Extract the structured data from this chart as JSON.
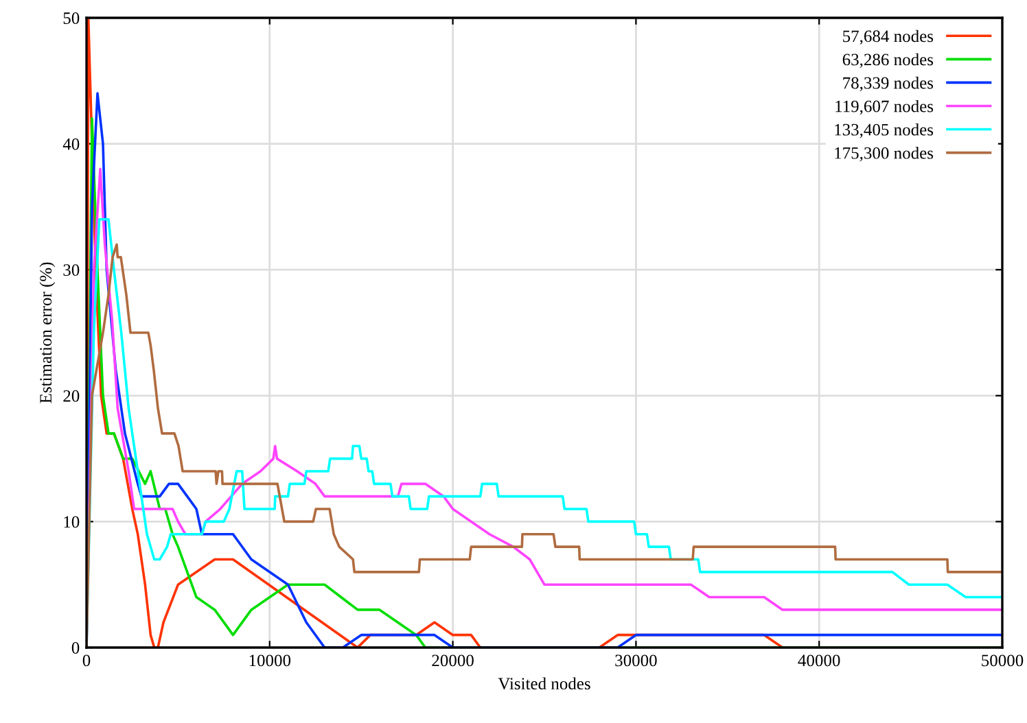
{
  "chart_data": {
    "type": "line",
    "xlabel": "Visited nodes",
    "ylabel": "Estimation error (%)",
    "xlim": [
      0,
      50000
    ],
    "ylim": [
      0,
      50
    ],
    "xticks": [
      0,
      10000,
      20000,
      30000,
      40000,
      50000
    ],
    "yticks": [
      0,
      10,
      20,
      30,
      40,
      50
    ],
    "grid": true,
    "legend": "top right",
    "series": [
      {
        "name": "57,684 nodes",
        "color": "#ff3300",
        "x": [
          0,
          100,
          500,
          800,
          1100,
          1500,
          2000,
          2500,
          2800,
          3200,
          3500,
          3700,
          3900,
          4200,
          5000,
          7000,
          8000,
          14800,
          15500,
          18000,
          19000,
          20000,
          21000,
          21500,
          28000,
          29000,
          37000,
          38000,
          50000
        ],
        "values": [
          0,
          50,
          30,
          20,
          17,
          17,
          15,
          11,
          9,
          5,
          1,
          0,
          0,
          2,
          5,
          7,
          7,
          0,
          1,
          1,
          2,
          1,
          1,
          0,
          0,
          1,
          1,
          0,
          0
        ]
      },
      {
        "name": "63,286 nodes",
        "color": "#00dd00",
        "x": [
          0,
          300,
          600,
          900,
          1200,
          1500,
          2000,
          2500,
          3200,
          3500,
          4000,
          4300,
          4700,
          5000,
          6000,
          7000,
          8000,
          9000,
          11000,
          13000,
          14800,
          16000,
          18000,
          18500,
          50000
        ],
        "values": [
          0,
          42,
          30,
          20,
          17,
          17,
          15,
          15,
          13,
          14,
          11,
          11,
          9,
          8,
          4,
          3,
          1,
          3,
          5,
          5,
          3,
          3,
          1,
          0,
          0
        ]
      },
      {
        "name": "78,339 nodes",
        "color": "#0033ff",
        "x": [
          0,
          300,
          600,
          900,
          1100,
          1600,
          2100,
          2800,
          3000,
          3500,
          4000,
          4500,
          5000,
          5500,
          6000,
          6300,
          8000,
          9000,
          11000,
          12000,
          13000,
          14000,
          15000,
          19000,
          20000,
          29000,
          30000,
          50000
        ],
        "values": [
          0,
          35,
          44,
          40,
          30,
          22,
          17,
          13,
          12,
          12,
          12,
          13,
          13,
          12,
          11,
          9,
          9,
          7,
          5,
          2,
          0,
          0,
          1,
          1,
          0,
          0,
          1,
          1
        ]
      },
      {
        "name": "119,607 nodes",
        "color": "#ff44ff",
        "x": [
          0,
          400,
          750,
          1000,
          1400,
          1700,
          2300,
          2600,
          4700,
          5000,
          5400,
          6300,
          6500,
          7300,
          7900,
          8500,
          9500,
          10200,
          10300,
          10400,
          11500,
          12500,
          13000,
          17000,
          17200,
          18500,
          19500,
          20000,
          22000,
          23300,
          24200,
          25000,
          33000,
          34000,
          37000,
          38000,
          50000
        ],
        "values": [
          0,
          30,
          38,
          32,
          26,
          19,
          14,
          11,
          11,
          10,
          9,
          9,
          10,
          11,
          12,
          13,
          14,
          15,
          16,
          15,
          14,
          13,
          12,
          12,
          13,
          13,
          12,
          11,
          9,
          8,
          7,
          5,
          5,
          4,
          4,
          3,
          3
        ]
      },
      {
        "name": "133,405 nodes",
        "color": "#00ffff",
        "x": [
          0,
          400,
          700,
          1200,
          1500,
          1900,
          2300,
          2600,
          2900,
          3300,
          3700,
          4000,
          4400,
          4600,
          6300,
          6500,
          7500,
          7800,
          8200,
          8500,
          8625,
          10275,
          10300,
          11000,
          11100,
          11900,
          12000,
          13200,
          13300,
          14500,
          14550,
          14900,
          15000,
          15300,
          15400,
          15600,
          15700,
          16600,
          16700,
          17600,
          17700,
          18600,
          18700,
          21500,
          21600,
          22400,
          22500,
          26000,
          26100,
          27300,
          27400,
          29900,
          30000,
          30600,
          30700,
          31800,
          31900,
          33400,
          33500,
          44000,
          44900,
          47000,
          48000,
          50000
        ],
        "values": [
          0,
          25,
          34,
          34,
          30,
          25,
          19,
          16,
          13,
          9,
          7,
          7,
          8,
          9,
          9,
          10,
          10,
          11,
          14,
          14,
          11,
          11,
          12,
          12,
          13,
          13,
          14,
          14,
          15,
          15,
          16,
          16,
          15,
          15,
          14,
          14,
          13,
          13,
          12,
          12,
          11,
          11,
          12,
          12,
          13,
          13,
          12,
          12,
          11,
          11,
          10,
          10,
          9,
          9,
          8,
          8,
          7,
          7,
          6,
          6,
          5,
          5,
          4,
          4
        ]
      },
      {
        "name": "175,300 nodes",
        "color": "#b06c40",
        "x": [
          0,
          300,
          900,
          1200,
          1425,
          1650,
          1700,
          1875,
          2175,
          2400,
          3375,
          3500,
          3675,
          3900,
          4125,
          4800,
          5025,
          5250,
          7050,
          7100,
          7200,
          7400,
          7425,
          10425,
          10800,
          12375,
          12525,
          13275,
          13500,
          13800,
          14550,
          14625,
          18150,
          18200,
          20925,
          21000,
          23775,
          23800,
          25500,
          25600,
          26900,
          26925,
          33100,
          33150,
          40875,
          40900,
          47000,
          47025,
          50000
        ],
        "values": [
          0,
          20,
          25,
          28,
          31,
          32,
          31,
          31,
          28,
          25,
          25,
          24,
          22,
          19,
          17,
          17,
          16,
          14,
          14,
          13,
          14,
          14,
          13,
          13,
          10,
          10,
          11,
          11,
          9,
          8,
          7,
          6,
          6,
          7,
          7,
          8,
          8,
          9,
          9,
          8,
          8,
          7,
          7,
          8,
          8,
          7,
          7,
          6,
          6
        ]
      }
    ]
  }
}
